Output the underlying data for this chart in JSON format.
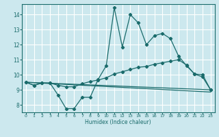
{
  "xlabel": "Humidex (Indice chaleur)",
  "bg_color": "#cce8ee",
  "line_color": "#1a6b6b",
  "grid_color": "#ffffff",
  "xlim": [
    -0.5,
    23.5
  ],
  "ylim": [
    7.5,
    14.7
  ],
  "xtick_labels": [
    "0",
    "1",
    "2",
    "3",
    "4",
    "5",
    "6",
    "7",
    "8",
    "9",
    "10",
    "11",
    "12",
    "13",
    "14",
    "15",
    "16",
    "17",
    "18",
    "19",
    "20",
    "21",
    "22",
    "23"
  ],
  "yticks": [
    8,
    9,
    10,
    11,
    12,
    13,
    14
  ],
  "line1_x": [
    0,
    1,
    2,
    3,
    4,
    5,
    6,
    7,
    8,
    9,
    10,
    11,
    12,
    13,
    14,
    15,
    16,
    17,
    18,
    19,
    20,
    21,
    22,
    23
  ],
  "line1_y": [
    9.5,
    9.3,
    9.45,
    9.45,
    8.65,
    7.75,
    7.75,
    8.5,
    8.5,
    9.7,
    10.6,
    14.45,
    11.85,
    14.0,
    13.45,
    12.0,
    12.6,
    12.75,
    12.4,
    11.25,
    10.6,
    10.05,
    10.0,
    9.0
  ],
  "line2_x": [
    0,
    1,
    2,
    3,
    4,
    5,
    6,
    7,
    8,
    9,
    10,
    11,
    12,
    13,
    14,
    15,
    16,
    17,
    18,
    19,
    20,
    21,
    22,
    23
  ],
  "line2_y": [
    9.5,
    9.3,
    9.45,
    9.45,
    9.3,
    9.2,
    9.2,
    9.4,
    9.55,
    9.65,
    9.8,
    10.05,
    10.2,
    10.35,
    10.5,
    10.55,
    10.7,
    10.8,
    10.9,
    11.0,
    10.65,
    10.05,
    9.85,
    9.0
  ],
  "line3_x": [
    0,
    23
  ],
  "line3_y": [
    9.5,
    9.0
  ],
  "line4_x": [
    0,
    23
  ],
  "line4_y": [
    9.5,
    8.85
  ]
}
